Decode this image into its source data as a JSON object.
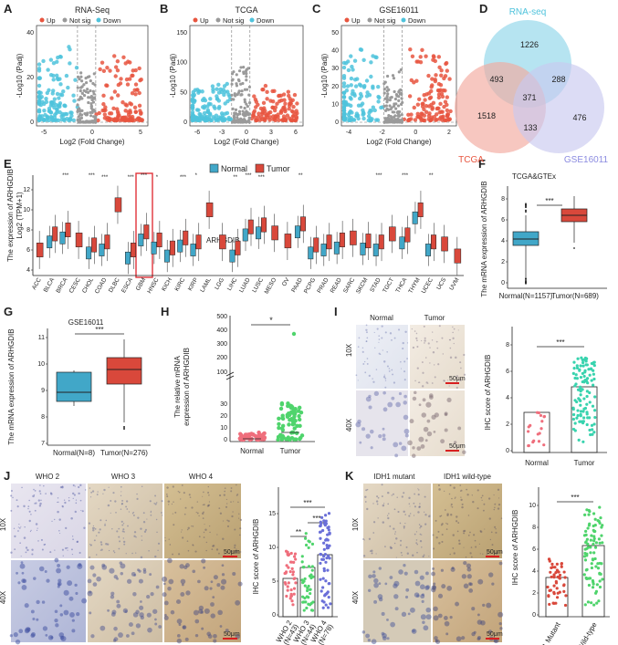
{
  "colors": {
    "up": "#e8553f",
    "down": "#4fc3dc",
    "ns": "#9a9a9a",
    "normal": "#41a7c8",
    "tumor": "#d9483b",
    "teal": "#38d3ae",
    "pink": "#ef6e7c",
    "blue": "#6a6fd8",
    "green": "#4fd46c",
    "venn_rna": "#8fd6ea",
    "venn_tcga": "#f3a99e",
    "venn_geo": "#c9c9ef"
  },
  "panels": {
    "A": "A",
    "B": "B",
    "C": "C",
    "D": "D",
    "E": "E",
    "F": "F",
    "G": "G",
    "H": "H",
    "I": "I",
    "J": "J",
    "K": "K"
  },
  "volcano": {
    "legend_up": "Up",
    "legend_ns": "Not sig",
    "legend_down": "Down",
    "xlabel": "Log2 (Fold Change)",
    "ylabel": "-Log10 (Padj)",
    "plots": [
      {
        "title": "RNA-Seq",
        "xticks": [
          "-5",
          "0",
          "5"
        ],
        "yticks": [
          "0",
          "20",
          "40"
        ]
      },
      {
        "title": "TCGA",
        "xticks": [
          "-6",
          "-3",
          "0",
          "3",
          "6"
        ],
        "yticks": [
          "0",
          "50",
          "100",
          "150"
        ]
      },
      {
        "title": "GSE16011",
        "xticks": [
          "-4",
          "-2",
          "0",
          "2"
        ],
        "yticks": [
          "0",
          "10",
          "20",
          "30",
          "40",
          "50"
        ]
      }
    ]
  },
  "venn": {
    "labels": {
      "rna": "RNA-seq",
      "tcga": "TCGA",
      "geo": "GSE16011"
    },
    "counts": {
      "rna_only": "1226",
      "tcga_only": "1518",
      "geo_only": "476",
      "rna_tcga": "493",
      "rna_geo": "288",
      "tcga_geo": "133",
      "all": "371"
    }
  },
  "panE": {
    "legend_normal": "Normal",
    "legend_tumor": "Tumor",
    "ylabel": "The expression of ARHGDIB",
    "ylabel2": "Log2 (TPM+1)",
    "gene": "ARHGDIB",
    "yticks": [
      "4",
      "6",
      "8",
      "10",
      "12"
    ],
    "cancers": [
      "ACC",
      "BLCA",
      "BRCA",
      "CESC",
      "CHOL",
      "COAD",
      "DLBC",
      "ESCA",
      "GBM",
      "HNSC",
      "KICH",
      "KIRC",
      "KIRP",
      "LAML",
      "LGG",
      "LIHC",
      "LUAD",
      "LUSC",
      "MESO",
      "OV",
      "PAAD",
      "PCPG",
      "PRAD",
      "READ",
      "SARC",
      "SKCM",
      "STAD",
      "TGCT",
      "THCA",
      "THYM",
      "UCEC",
      "UCS",
      "UVM"
    ],
    "stars": [
      "",
      "",
      "***",
      "",
      "***",
      "***",
      "",
      "***",
      "***",
      "*",
      "",
      "***",
      "*",
      "",
      "",
      "**",
      "***",
      "***",
      "",
      "",
      "**",
      "",
      "",
      "",
      "",
      "",
      "***",
      "",
      "***",
      "",
      "**",
      "",
      ""
    ]
  },
  "panF": {
    "title": "TCGA&GTEx",
    "ylabel": "The mRNA expression of ARHGDIB",
    "yticks": [
      "0",
      "2",
      "4",
      "6",
      "8"
    ],
    "cats": [
      "Normal(N=1157)",
      "Tumor(N=689)"
    ],
    "sig": "***"
  },
  "panG": {
    "title": "GSE16011",
    "ylabel": "The mRNA expression of ARHGDIB",
    "yticks": [
      "7",
      "8",
      "9",
      "10",
      "11"
    ],
    "cats": [
      "Normal(N=8)",
      "Tumor(N=276)"
    ],
    "sig": "***"
  },
  "panH": {
    "ylabel1": "The relative mRNA",
    "ylabel2": "expression of ARHGDIB",
    "yticks": [
      "0",
      "10",
      "20",
      "30",
      "100",
      "200",
      "300",
      "400",
      "500"
    ],
    "cats": [
      "Normal",
      "Tumor"
    ],
    "sig": "*"
  },
  "panI": {
    "col_normal": "Normal",
    "col_tumor": "Tumor",
    "row10": "10X",
    "row40": "40X",
    "scale": "50μm",
    "ylabel": "IHC score of ARHGDIB",
    "yticks": [
      "0",
      "2",
      "4",
      "6",
      "8"
    ],
    "cats": [
      "Normal",
      "Tumor"
    ],
    "sig": "***"
  },
  "panJ": {
    "cols": [
      "WHO 2",
      "WHO 3",
      "WHO 4"
    ],
    "row10": "10X",
    "row40": "40X",
    "scale": "50μm",
    "ylabel": "IHC score of ARHGDIB",
    "yticks": [
      "0",
      "5",
      "10",
      "15"
    ],
    "cats": [
      "WHO 2",
      "WHO 3",
      "WHO 4"
    ],
    "ns": [
      "(N=43)",
      "(N=44)",
      "(N=78)"
    ],
    "sig12": "**",
    "sig13": "***",
    "sig23": "***"
  },
  "panK": {
    "cols": [
      "IDH1 mutant",
      "IDH1 wild-type"
    ],
    "row10": "10X",
    "row40": "40X",
    "scale": "50μm",
    "ylabel": "IHC score of ARHGDIB",
    "yticks": [
      "0",
      "2",
      "4",
      "6",
      "8",
      "10"
    ],
    "cats": [
      "IDH1 Mutant",
      "IDH1 Wild-type"
    ],
    "sig": "***"
  }
}
